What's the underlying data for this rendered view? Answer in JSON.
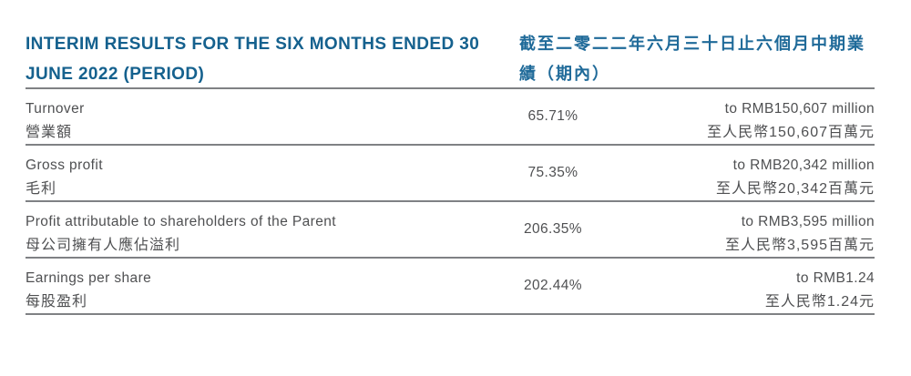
{
  "header": {
    "title_en_line1": "INTERIM RESULTS FOR THE SIX MONTHS ENDED 30",
    "title_en_line2": "JUNE 2022 (PERIOD)",
    "title_zh_line1": "截至二零二二年六月三十日止六個月中期業",
    "title_zh_line2": "績（期內）"
  },
  "colors": {
    "accent_blue": "#15618e",
    "body_text": "#4f5052",
    "rule_gray": "#7f8184"
  },
  "table": {
    "rows": [
      {
        "label_en": "Turnover",
        "label_zh": "營業額",
        "change_pct": "65.71%",
        "value_en": "to RMB150,607 million",
        "value_zh": "至人民幣150,607百萬元"
      },
      {
        "label_en": "Gross profit",
        "label_zh": "毛利",
        "change_pct": "75.35%",
        "value_en": "to RMB20,342 million",
        "value_zh": "至人民幣20,342百萬元"
      },
      {
        "label_en": "Profit attributable to shareholders of the Parent",
        "label_zh": "母公司擁有人應佔溢利",
        "change_pct": "206.35%",
        "value_en": "to RMB3,595 million",
        "value_zh": "至人民幣3,595百萬元"
      },
      {
        "label_en": "Earnings per share",
        "label_zh": "每股盈利",
        "change_pct": "202.44%",
        "value_en": "to RMB1.24",
        "value_zh": "至人民幣1.24元"
      }
    ]
  }
}
